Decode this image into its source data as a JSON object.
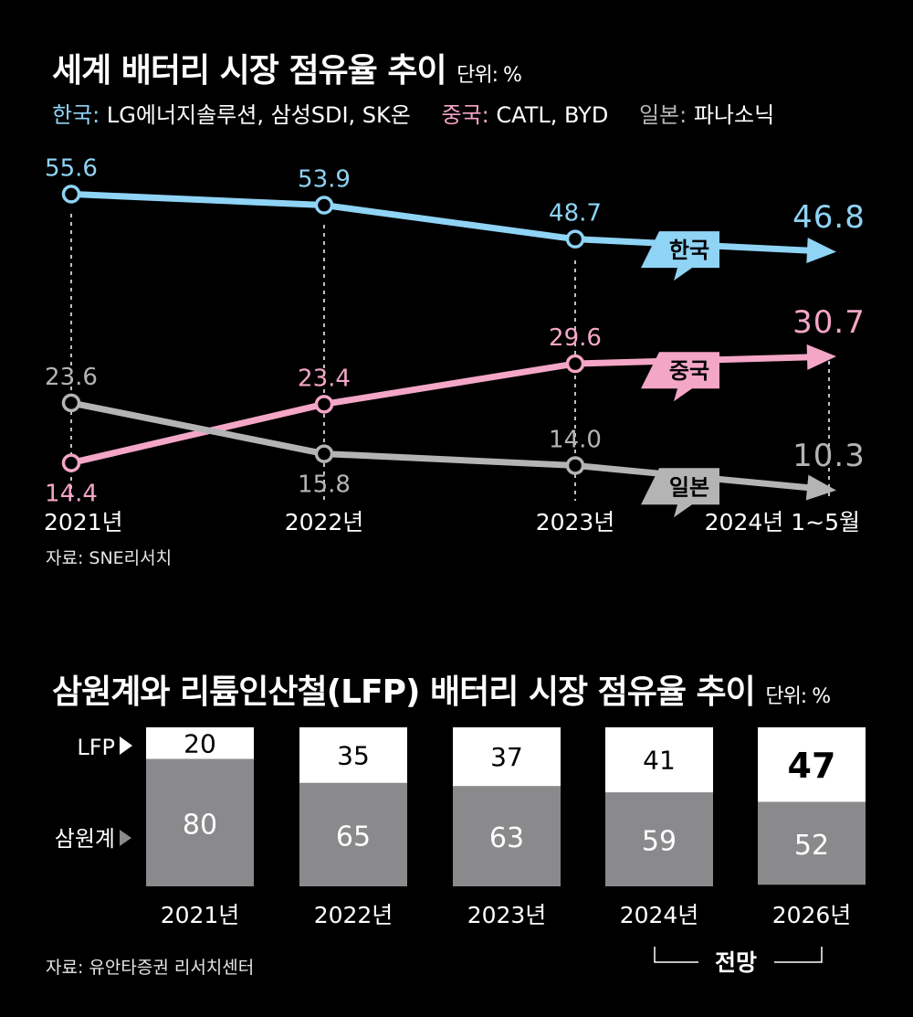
{
  "chart1": {
    "title": "세계 배터리 시장 점유율 추이",
    "unit": "단위: %",
    "legend": [
      {
        "group": "한국:",
        "members": "LG에너지솔루션, 삼성SDI, SK온",
        "color": "#8fd3f5"
      },
      {
        "group": "중국:",
        "members": "CATL, BYD",
        "color": "#f4a6c6"
      },
      {
        "group": "일본:",
        "members": "파나소닉",
        "color": "#b4b4b4"
      }
    ],
    "source": "자료: SNE리서치"
  },
  "chart2": {
    "title": "삼원계와 리튬인산철(LFP) 배터리 시장 점유율 추이",
    "unit": "단위: %",
    "row_labels": {
      "lfp": "LFP",
      "ncm": "삼원계"
    },
    "forecast_label": "전망",
    "source": "자료: 유안타증권 리서치센터"
  },
  "chart_data": [
    {
      "type": "line",
      "title": "세계 배터리 시장 점유율 추이",
      "categories": [
        "2021년",
        "2022년",
        "2023년",
        "2024년 1~5월"
      ],
      "ylim": [
        0,
        60
      ],
      "series": [
        {
          "name": "한국",
          "values": [
            55.6,
            53.9,
            48.7,
            46.8
          ],
          "color": "#8fd3f5"
        },
        {
          "name": "중국",
          "values": [
            14.4,
            23.4,
            29.6,
            30.7
          ],
          "color": "#f4a6c6"
        },
        {
          "name": "일본",
          "values": [
            23.6,
            15.8,
            14.0,
            10.3
          ],
          "color": "#b4b4b4"
        }
      ]
    },
    {
      "type": "bar",
      "stacked": true,
      "title": "삼원계와 리튬인산철(LFP) 배터리 시장 점유율 추이",
      "categories": [
        "2021년",
        "2022년",
        "2023년",
        "2024년",
        "2026년"
      ],
      "ylim": [
        0,
        100
      ],
      "series": [
        {
          "name": "LFP",
          "values": [
            20,
            35,
            37,
            41,
            47
          ],
          "color": "#ffffff"
        },
        {
          "name": "삼원계",
          "values": [
            80,
            65,
            63,
            59,
            52
          ],
          "color": "#8a8a8c"
        }
      ]
    }
  ]
}
